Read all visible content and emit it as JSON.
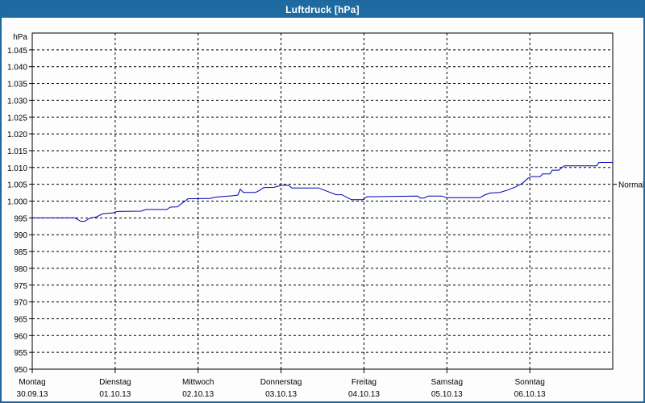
{
  "window": {
    "title": "Luftdruck [hPa]"
  },
  "colors": {
    "titlebar_blue": "#1e6ba2",
    "frame_blue": "#1d699f",
    "line_blue": "#0000b2",
    "grid_color": "#000000",
    "background": "#fdfdfd",
    "title_text": "#ffffff"
  },
  "chart_data": {
    "type": "line",
    "title": "Luftdruck [hPa]",
    "unit_label": "hPa",
    "ylim": [
      950,
      1050
    ],
    "grid": "dashed",
    "legend_position": "none",
    "x_range_days": 7,
    "yticks": [
      {
        "value": 950,
        "label": "950"
      },
      {
        "value": 955,
        "label": "955"
      },
      {
        "value": 960,
        "label": "960"
      },
      {
        "value": 965,
        "label": "965"
      },
      {
        "value": 970,
        "label": "970"
      },
      {
        "value": 975,
        "label": "975"
      },
      {
        "value": 980,
        "label": "980"
      },
      {
        "value": 985,
        "label": "985"
      },
      {
        "value": 990,
        "label": "990"
      },
      {
        "value": 995,
        "label": "995"
      },
      {
        "value": 1000,
        "label": "1.000"
      },
      {
        "value": 1005,
        "label": "1.005"
      },
      {
        "value": 1010,
        "label": "1.010"
      },
      {
        "value": 1015,
        "label": "1.015"
      },
      {
        "value": 1020,
        "label": "1.020"
      },
      {
        "value": 1025,
        "label": "1.025"
      },
      {
        "value": 1030,
        "label": "1.030"
      },
      {
        "value": 1035,
        "label": "1.035"
      },
      {
        "value": 1040,
        "label": "1.040"
      },
      {
        "value": 1045,
        "label": "1.045"
      }
    ],
    "x_days": [
      {
        "name": "Montag",
        "date": "30.09.13"
      },
      {
        "name": "Dienstag",
        "date": "01.10.13"
      },
      {
        "name": "Mittwoch",
        "date": "02.10.13"
      },
      {
        "name": "Donnerstag",
        "date": "03.10.13"
      },
      {
        "name": "Freitag",
        "date": "04.10.13"
      },
      {
        "name": "Samstag",
        "date": "05.10.13"
      },
      {
        "name": "Sonntag",
        "date": "06.10.13"
      }
    ],
    "normal_marker": {
      "label": "Normal",
      "value": 1005
    },
    "series": [
      {
        "name": "Luftdruck",
        "color": "#0000b2",
        "points": [
          [
            0.0,
            995.0
          ],
          [
            0.515,
            995.0
          ],
          [
            0.583,
            994.0
          ],
          [
            0.632,
            994.0
          ],
          [
            0.7,
            995.0
          ],
          [
            0.778,
            995.3
          ],
          [
            0.846,
            996.2
          ],
          [
            0.972,
            996.5
          ],
          [
            1.021,
            996.9
          ],
          [
            1.313,
            997.0
          ],
          [
            1.371,
            997.5
          ],
          [
            1.624,
            997.5
          ],
          [
            1.663,
            998.2
          ],
          [
            1.75,
            998.3
          ],
          [
            1.799,
            999.2
          ],
          [
            1.877,
            1000.7
          ],
          [
            2.139,
            1000.8
          ],
          [
            2.217,
            1001.2
          ],
          [
            2.431,
            1001.6
          ],
          [
            2.479,
            1001.8
          ],
          [
            2.508,
            1003.5
          ],
          [
            2.547,
            1002.6
          ],
          [
            2.693,
            1002.6
          ],
          [
            2.742,
            1003.2
          ],
          [
            2.79,
            1004.0
          ],
          [
            2.917,
            1004.1
          ],
          [
            3.004,
            1004.7
          ],
          [
            3.092,
            1004.7
          ],
          [
            3.131,
            1003.9
          ],
          [
            3.452,
            1003.9
          ],
          [
            3.665,
            1001.9
          ],
          [
            3.733,
            1001.9
          ],
          [
            3.85,
            1000.4
          ],
          [
            3.986,
            1000.4
          ],
          [
            4.035,
            1001.3
          ],
          [
            4.647,
            1001.5
          ],
          [
            4.677,
            1000.9
          ],
          [
            4.725,
            1000.9
          ],
          [
            4.774,
            1001.5
          ],
          [
            4.939,
            1001.5
          ],
          [
            4.997,
            1001.0
          ],
          [
            5.396,
            1001.0
          ],
          [
            5.454,
            1001.8
          ],
          [
            5.522,
            1002.4
          ],
          [
            5.639,
            1002.6
          ],
          [
            5.736,
            1003.3
          ],
          [
            5.833,
            1004.3
          ],
          [
            5.911,
            1005.3
          ],
          [
            5.979,
            1006.8
          ],
          [
            6.018,
            1007.3
          ],
          [
            6.125,
            1007.3
          ],
          [
            6.154,
            1008.1
          ],
          [
            6.242,
            1008.1
          ],
          [
            6.271,
            1009.2
          ],
          [
            6.349,
            1009.2
          ],
          [
            6.388,
            1010.0
          ],
          [
            6.417,
            1010.5
          ],
          [
            6.806,
            1010.5
          ],
          [
            6.835,
            1011.5
          ],
          [
            7.0,
            1011.5
          ]
        ]
      }
    ]
  }
}
